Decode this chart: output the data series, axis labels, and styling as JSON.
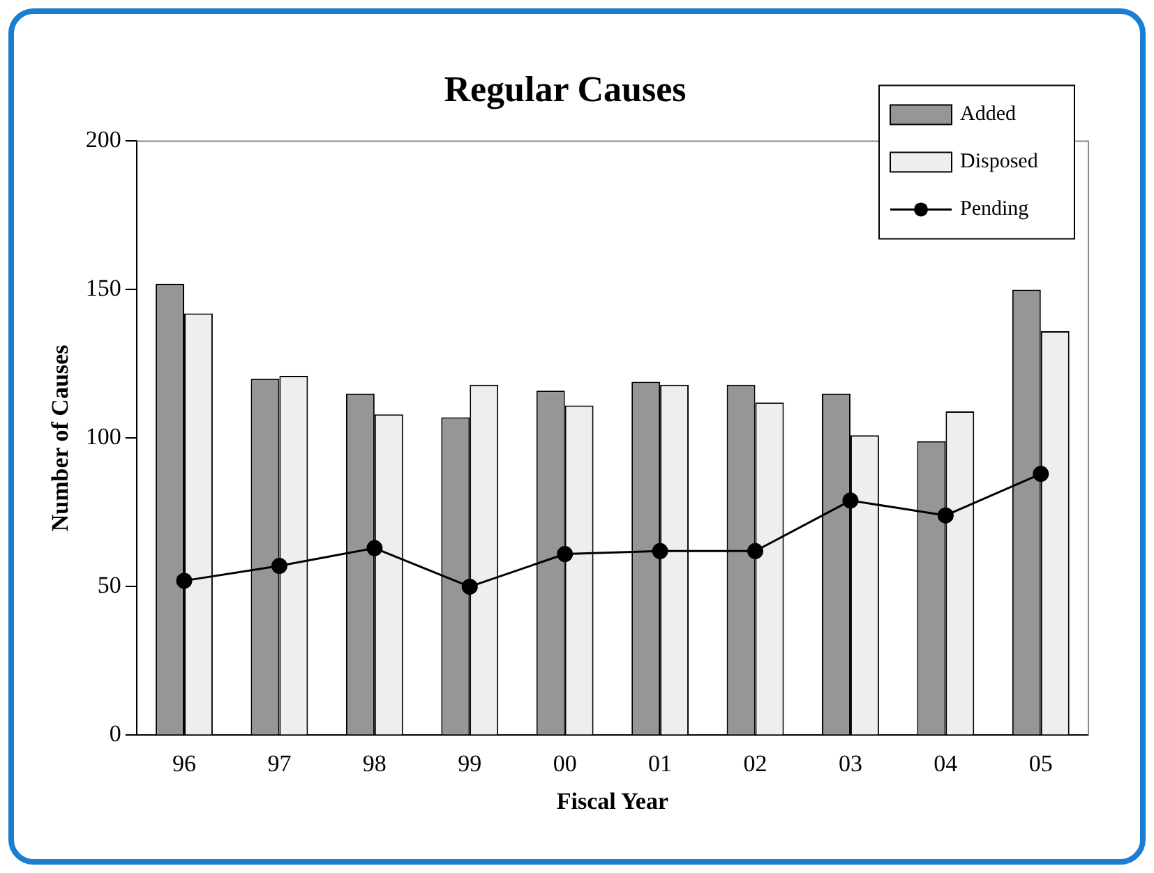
{
  "chart_data": {
    "type": "bar",
    "title": "Regular Causes",
    "xlabel": "Fiscal Year",
    "ylabel": "Number of Causes",
    "categories": [
      "96",
      "97",
      "98",
      "99",
      "00",
      "01",
      "02",
      "03",
      "04",
      "05"
    ],
    "series": [
      {
        "name": "Added",
        "color": "#969696",
        "values": [
          152,
          120,
          115,
          107,
          116,
          119,
          118,
          115,
          99,
          150
        ]
      },
      {
        "name": "Disposed",
        "color": "#eeeeee",
        "values": [
          142,
          121,
          108,
          118,
          111,
          118,
          112,
          101,
          109,
          136
        ]
      },
      {
        "name": "Pending",
        "type": "line",
        "color": "#000000",
        "marker": "circle",
        "line_style": "solid",
        "values": [
          52,
          57,
          63,
          50,
          61,
          62,
          62,
          79,
          74,
          88
        ]
      }
    ],
    "ylim": [
      0,
      200
    ],
    "yticks": [
      0,
      50,
      100,
      150,
      200
    ],
    "grid": false,
    "legend": "top right"
  }
}
